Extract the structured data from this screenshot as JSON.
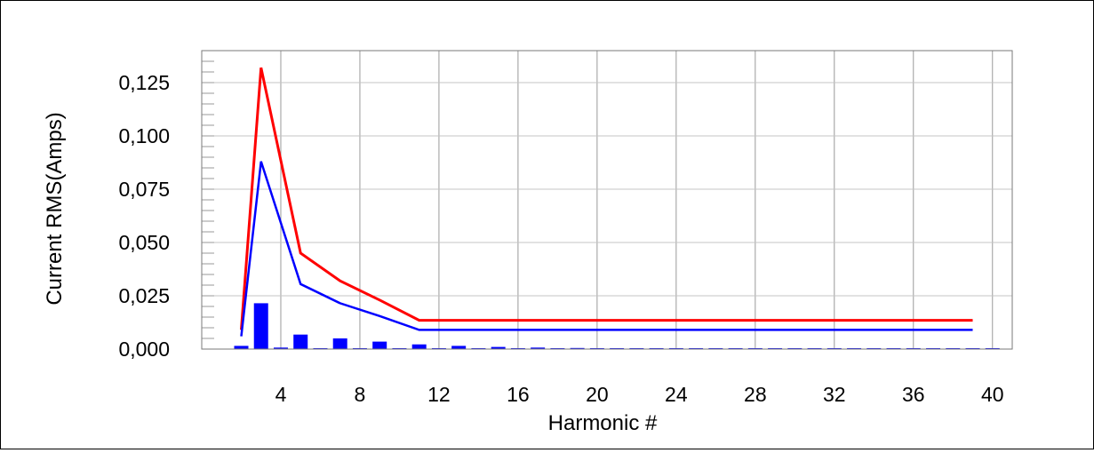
{
  "chart_data": {
    "type": "bar",
    "xlabel": "Harmonic #",
    "ylabel": "Current RMS(Amps)",
    "xlim": [
      0,
      41
    ],
    "ylim": [
      0,
      0.14
    ],
    "x_ticks": [
      4,
      8,
      12,
      16,
      20,
      24,
      28,
      32,
      36,
      40
    ],
    "x_tick_labels": [
      "4",
      "8",
      "12",
      "16",
      "20",
      "24",
      "28",
      "32",
      "36",
      "40"
    ],
    "y_ticks": [
      0,
      0.025,
      0.05,
      0.075,
      0.1,
      0.125
    ],
    "y_tick_labels": [
      "0,000",
      "0,025",
      "0,050",
      "0,075",
      "0,100",
      "0,125"
    ],
    "grid": true,
    "series": [
      {
        "type": "bar",
        "color": "#0000ff",
        "x": [
          2,
          3,
          4,
          5,
          6,
          7,
          8,
          9,
          10,
          11,
          12,
          13,
          14,
          15,
          16,
          17,
          18,
          19,
          20,
          21,
          22,
          23,
          24,
          25,
          26,
          27,
          28,
          29,
          30,
          31,
          32,
          33,
          34,
          35,
          36,
          37,
          38,
          39,
          40
        ],
        "values": [
          0.0015,
          0.0215,
          0.0007,
          0.0068,
          0.0004,
          0.005,
          0.0003,
          0.0035,
          0.0003,
          0.0022,
          0.0002,
          0.0015,
          0.0002,
          0.001,
          0.0001,
          0.0007,
          0.0001,
          0.0005,
          0.0001,
          0.0003,
          0.0001,
          0.0002,
          0.0001,
          0.0002,
          0.0001,
          0.0001,
          0.0001,
          0.0001,
          0.0001,
          0.0001,
          0.0001,
          0.0001,
          0.0001,
          0.0001,
          0.0001,
          0.0001,
          0.0001,
          0.0001,
          0.0002
        ]
      },
      {
        "type": "line",
        "color": "#ff0000",
        "x": [
          2,
          3,
          5,
          7,
          9,
          11,
          39
        ],
        "values": [
          0.009,
          0.132,
          0.045,
          0.032,
          0.023,
          0.0135,
          0.0135
        ]
      },
      {
        "type": "line",
        "color": "#0000ff",
        "x": [
          2,
          3,
          5,
          7,
          9,
          11,
          39
        ],
        "values": [
          0.006,
          0.088,
          0.0305,
          0.0215,
          0.0155,
          0.009,
          0.009
        ]
      }
    ]
  }
}
